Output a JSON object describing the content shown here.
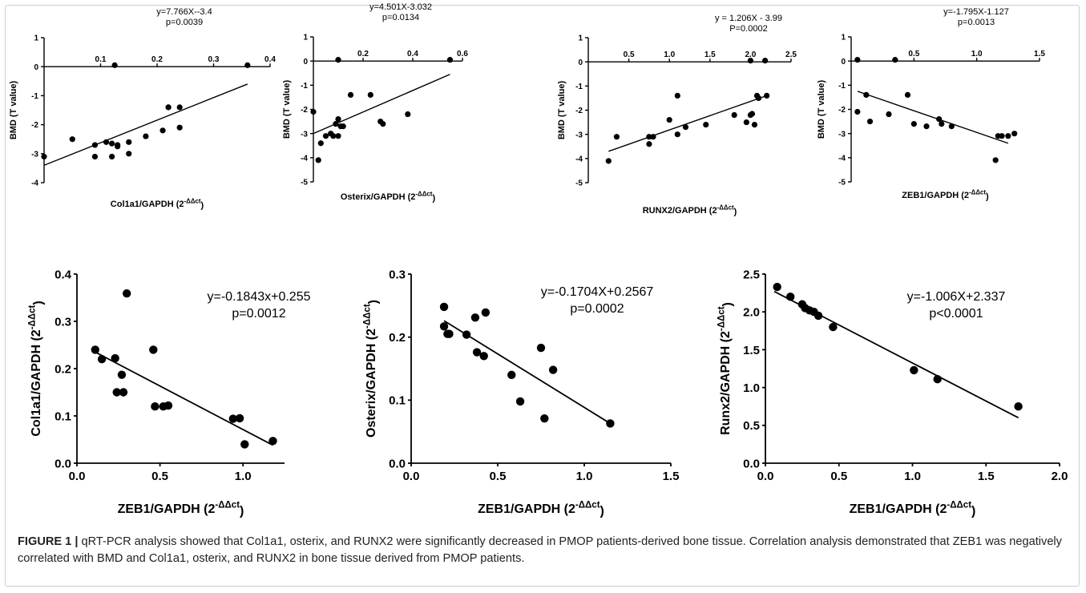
{
  "caption": {
    "label": "FIGURE 1 |",
    "text": "qRT-PCR analysis showed that Col1a1, osterix, and RUNX2 were significantly decreased in PMOP patients-derived bone tissue. Correlation analysis demonstrated that ZEB1 was negatively correlated with BMD and Col1a1, osterix, and RUNX2 in bone tissue derived from PMOP patients."
  },
  "chart_data": [
    {
      "type": "scatter",
      "xlabel": "Col1a1/GAPDH (2^-ΔΔct)",
      "ylabel": "BMD (T value)",
      "equation": "y=7.766X--3.4",
      "pvalue": "p=0.0039",
      "xlim": [
        0,
        0.4
      ],
      "ylim": [
        -4,
        1
      ],
      "xticks": [
        "0.1",
        "0.2",
        "0.3",
        "0.4"
      ],
      "yticks": [
        "-4",
        "-3",
        "-2",
        "-1",
        "0",
        "1"
      ],
      "fit_line": [
        [
          0.0,
          -3.4
        ],
        [
          0.36,
          -0.6
        ]
      ],
      "x": [
        0.0,
        0.05,
        0.09,
        0.09,
        0.11,
        0.12,
        0.12,
        0.13,
        0.13,
        0.15,
        0.15,
        0.18,
        0.21,
        0.22,
        0.22,
        0.24,
        0.24,
        0.36,
        0.125
      ],
      "y": [
        -3.1,
        -2.5,
        -2.7,
        -3.1,
        -2.6,
        -2.65,
        -3.1,
        -2.7,
        -2.75,
        -3.0,
        -2.6,
        -2.4,
        -2.2,
        -1.4,
        -1.4,
        -2.1,
        -1.4,
        0.05,
        0.05
      ]
    },
    {
      "type": "scatter",
      "xlabel": "Osterix/GAPDH (2^-ΔΔct)",
      "ylabel": "BMD (T value)",
      "equation": "y=4.501X-3.032",
      "pvalue": "p=0.0134",
      "xlim": [
        0,
        0.6
      ],
      "ylim": [
        -5,
        1
      ],
      "xticks": [
        "0.2",
        "0.4",
        "0.6"
      ],
      "yticks": [
        "-5",
        "-4",
        "-3",
        "-2",
        "-1",
        "0",
        "1"
      ],
      "fit_line": [
        [
          0.0,
          -3.0
        ],
        [
          0.55,
          -0.55
        ]
      ],
      "x": [
        0.0,
        0.02,
        0.03,
        0.05,
        0.07,
        0.08,
        0.09,
        0.1,
        0.1,
        0.11,
        0.12,
        0.15,
        0.23,
        0.27,
        0.28,
        0.38,
        0.55,
        0.1
      ],
      "y": [
        -2.1,
        -4.1,
        -3.4,
        -3.1,
        -3.0,
        -3.1,
        -2.6,
        -3.1,
        -2.4,
        -2.7,
        -2.7,
        -1.4,
        -1.4,
        -2.5,
        -2.6,
        -2.2,
        0.05,
        0.05
      ]
    },
    {
      "type": "scatter",
      "xlabel": "RUNX2/GAPDH (2^-ΔΔct)",
      "ylabel": "BMD (T value)",
      "equation": "y = 1.206X - 3.99",
      "pvalue": "P=0.0002",
      "xlim": [
        0,
        2.5
      ],
      "ylim": [
        -5,
        1
      ],
      "xticks": [
        "0.5",
        "1.0",
        "1.5",
        "2.0",
        "2.5"
      ],
      "yticks": [
        "-5",
        "-4",
        "-3",
        "-2",
        "-1",
        "0",
        "1"
      ],
      "fit_line": [
        [
          0.25,
          -3.7
        ],
        [
          2.2,
          -1.4
        ]
      ],
      "x": [
        0.25,
        0.35,
        0.75,
        0.8,
        0.75,
        1.0,
        1.1,
        1.1,
        1.2,
        1.45,
        1.8,
        1.95,
        2.0,
        2.02,
        2.05,
        2.08,
        2.1,
        2.2,
        2.0,
        2.18
      ],
      "y": [
        -4.1,
        -3.1,
        -3.4,
        -3.1,
        -3.1,
        -2.4,
        -3.0,
        -1.4,
        -2.7,
        -2.6,
        -2.2,
        -2.5,
        -2.2,
        -2.15,
        -2.6,
        -1.4,
        -1.5,
        -1.4,
        0.05,
        0.05
      ]
    },
    {
      "type": "scatter",
      "xlabel": "ZEB1/GAPDH (2^-ΔΔct)",
      "ylabel": "BMD (T value)",
      "equation": "y=-1.795X-1.127",
      "pvalue": "p=0.0013",
      "xlim": [
        0,
        1.5
      ],
      "ylim": [
        -5,
        1
      ],
      "xticks": [
        "0.5",
        "1.0",
        "1.5"
      ],
      "yticks": [
        "-5",
        "-4",
        "-3",
        "-2",
        "-1",
        "0",
        "1"
      ],
      "fit_line": [
        [
          0.05,
          -1.25
        ],
        [
          1.25,
          -3.4
        ]
      ],
      "x": [
        0.05,
        0.12,
        0.15,
        0.3,
        0.45,
        0.5,
        0.6,
        0.7,
        0.72,
        0.8,
        1.15,
        1.17,
        1.2,
        1.25,
        1.3,
        0.05,
        0.35
      ],
      "y": [
        -2.1,
        -1.4,
        -2.5,
        -2.2,
        -1.4,
        -2.6,
        -2.7,
        -2.4,
        -2.6,
        -2.7,
        -4.1,
        -3.1,
        -3.1,
        -3.1,
        -3.0,
        0.05,
        0.05
      ]
    },
    {
      "type": "scatter",
      "xlabel": "ZEB1/GAPDH (2^-ΔΔct)",
      "ylabel": "Col1a1/GAPDH (2^-ΔΔct)",
      "equation": "y=-0.1843x+0.255",
      "pvalue": "p=0.0012",
      "xlim": [
        0,
        1.25
      ],
      "ylim": [
        0,
        0.4
      ],
      "xticks": [
        "0.0",
        "0.5",
        "1.0"
      ],
      "yticks": [
        "0.0",
        "0.1",
        "0.2",
        "0.3",
        "0.4"
      ],
      "fit_line": [
        [
          0.11,
          0.235
        ],
        [
          1.18,
          0.038
        ]
      ],
      "x": [
        0.11,
        0.15,
        0.23,
        0.24,
        0.27,
        0.28,
        0.3,
        0.46,
        0.47,
        0.52,
        0.55,
        0.94,
        0.98,
        1.01,
        1.18
      ],
      "y": [
        0.24,
        0.22,
        0.222,
        0.15,
        0.187,
        0.15,
        0.359,
        0.24,
        0.12,
        0.12,
        0.122,
        0.094,
        0.095,
        0.04,
        0.047
      ]
    },
    {
      "type": "scatter",
      "xlabel": "ZEB1/GAPDH (2^-ΔΔct)",
      "ylabel": "Osterix/GAPDH (2^-ΔΔct)",
      "equation": "y=-0.1704X+0.2567",
      "pvalue": "p=0.0002",
      "xlim": [
        0,
        1.5
      ],
      "ylim": [
        0,
        0.3
      ],
      "xticks": [
        "0.0",
        "0.5",
        "1.0",
        "1.5"
      ],
      "yticks": [
        "0.0",
        "0.1",
        "0.2",
        "0.3"
      ],
      "fit_line": [
        [
          0.19,
          0.226
        ],
        [
          1.15,
          0.063
        ]
      ],
      "x": [
        0.19,
        0.19,
        0.21,
        0.22,
        0.32,
        0.37,
        0.38,
        0.42,
        0.43,
        0.58,
        0.63,
        0.75,
        0.77,
        0.82,
        1.15
      ],
      "y": [
        0.248,
        0.217,
        0.205,
        0.205,
        0.204,
        0.231,
        0.176,
        0.17,
        0.239,
        0.14,
        0.098,
        0.183,
        0.071,
        0.148,
        0.063
      ]
    },
    {
      "type": "scatter",
      "xlabel": "ZEB1/GAPDH (2^-ΔΔct)",
      "ylabel": "Runx2/GAPDH (2^-ΔΔct)",
      "equation": "y=-1.006X+2.337",
      "pvalue": "p<0.0001",
      "xlim": [
        0,
        2.0
      ],
      "ylim": [
        0,
        2.5
      ],
      "xticks": [
        "0.0",
        "0.5",
        "1.0",
        "1.5",
        "2.0"
      ],
      "yticks": [
        "0.0",
        "0.5",
        "1.0",
        "1.5",
        "2.0",
        "2.5"
      ],
      "fit_line": [
        [
          0.06,
          2.27
        ],
        [
          1.72,
          0.6
        ]
      ],
      "x": [
        0.08,
        0.17,
        0.25,
        0.27,
        0.3,
        0.33,
        0.36,
        0.46,
        1.01,
        1.17,
        1.72
      ],
      "y": [
        2.33,
        2.2,
        2.1,
        2.05,
        2.02,
        2.0,
        1.95,
        1.8,
        1.23,
        1.11,
        0.75
      ]
    }
  ]
}
